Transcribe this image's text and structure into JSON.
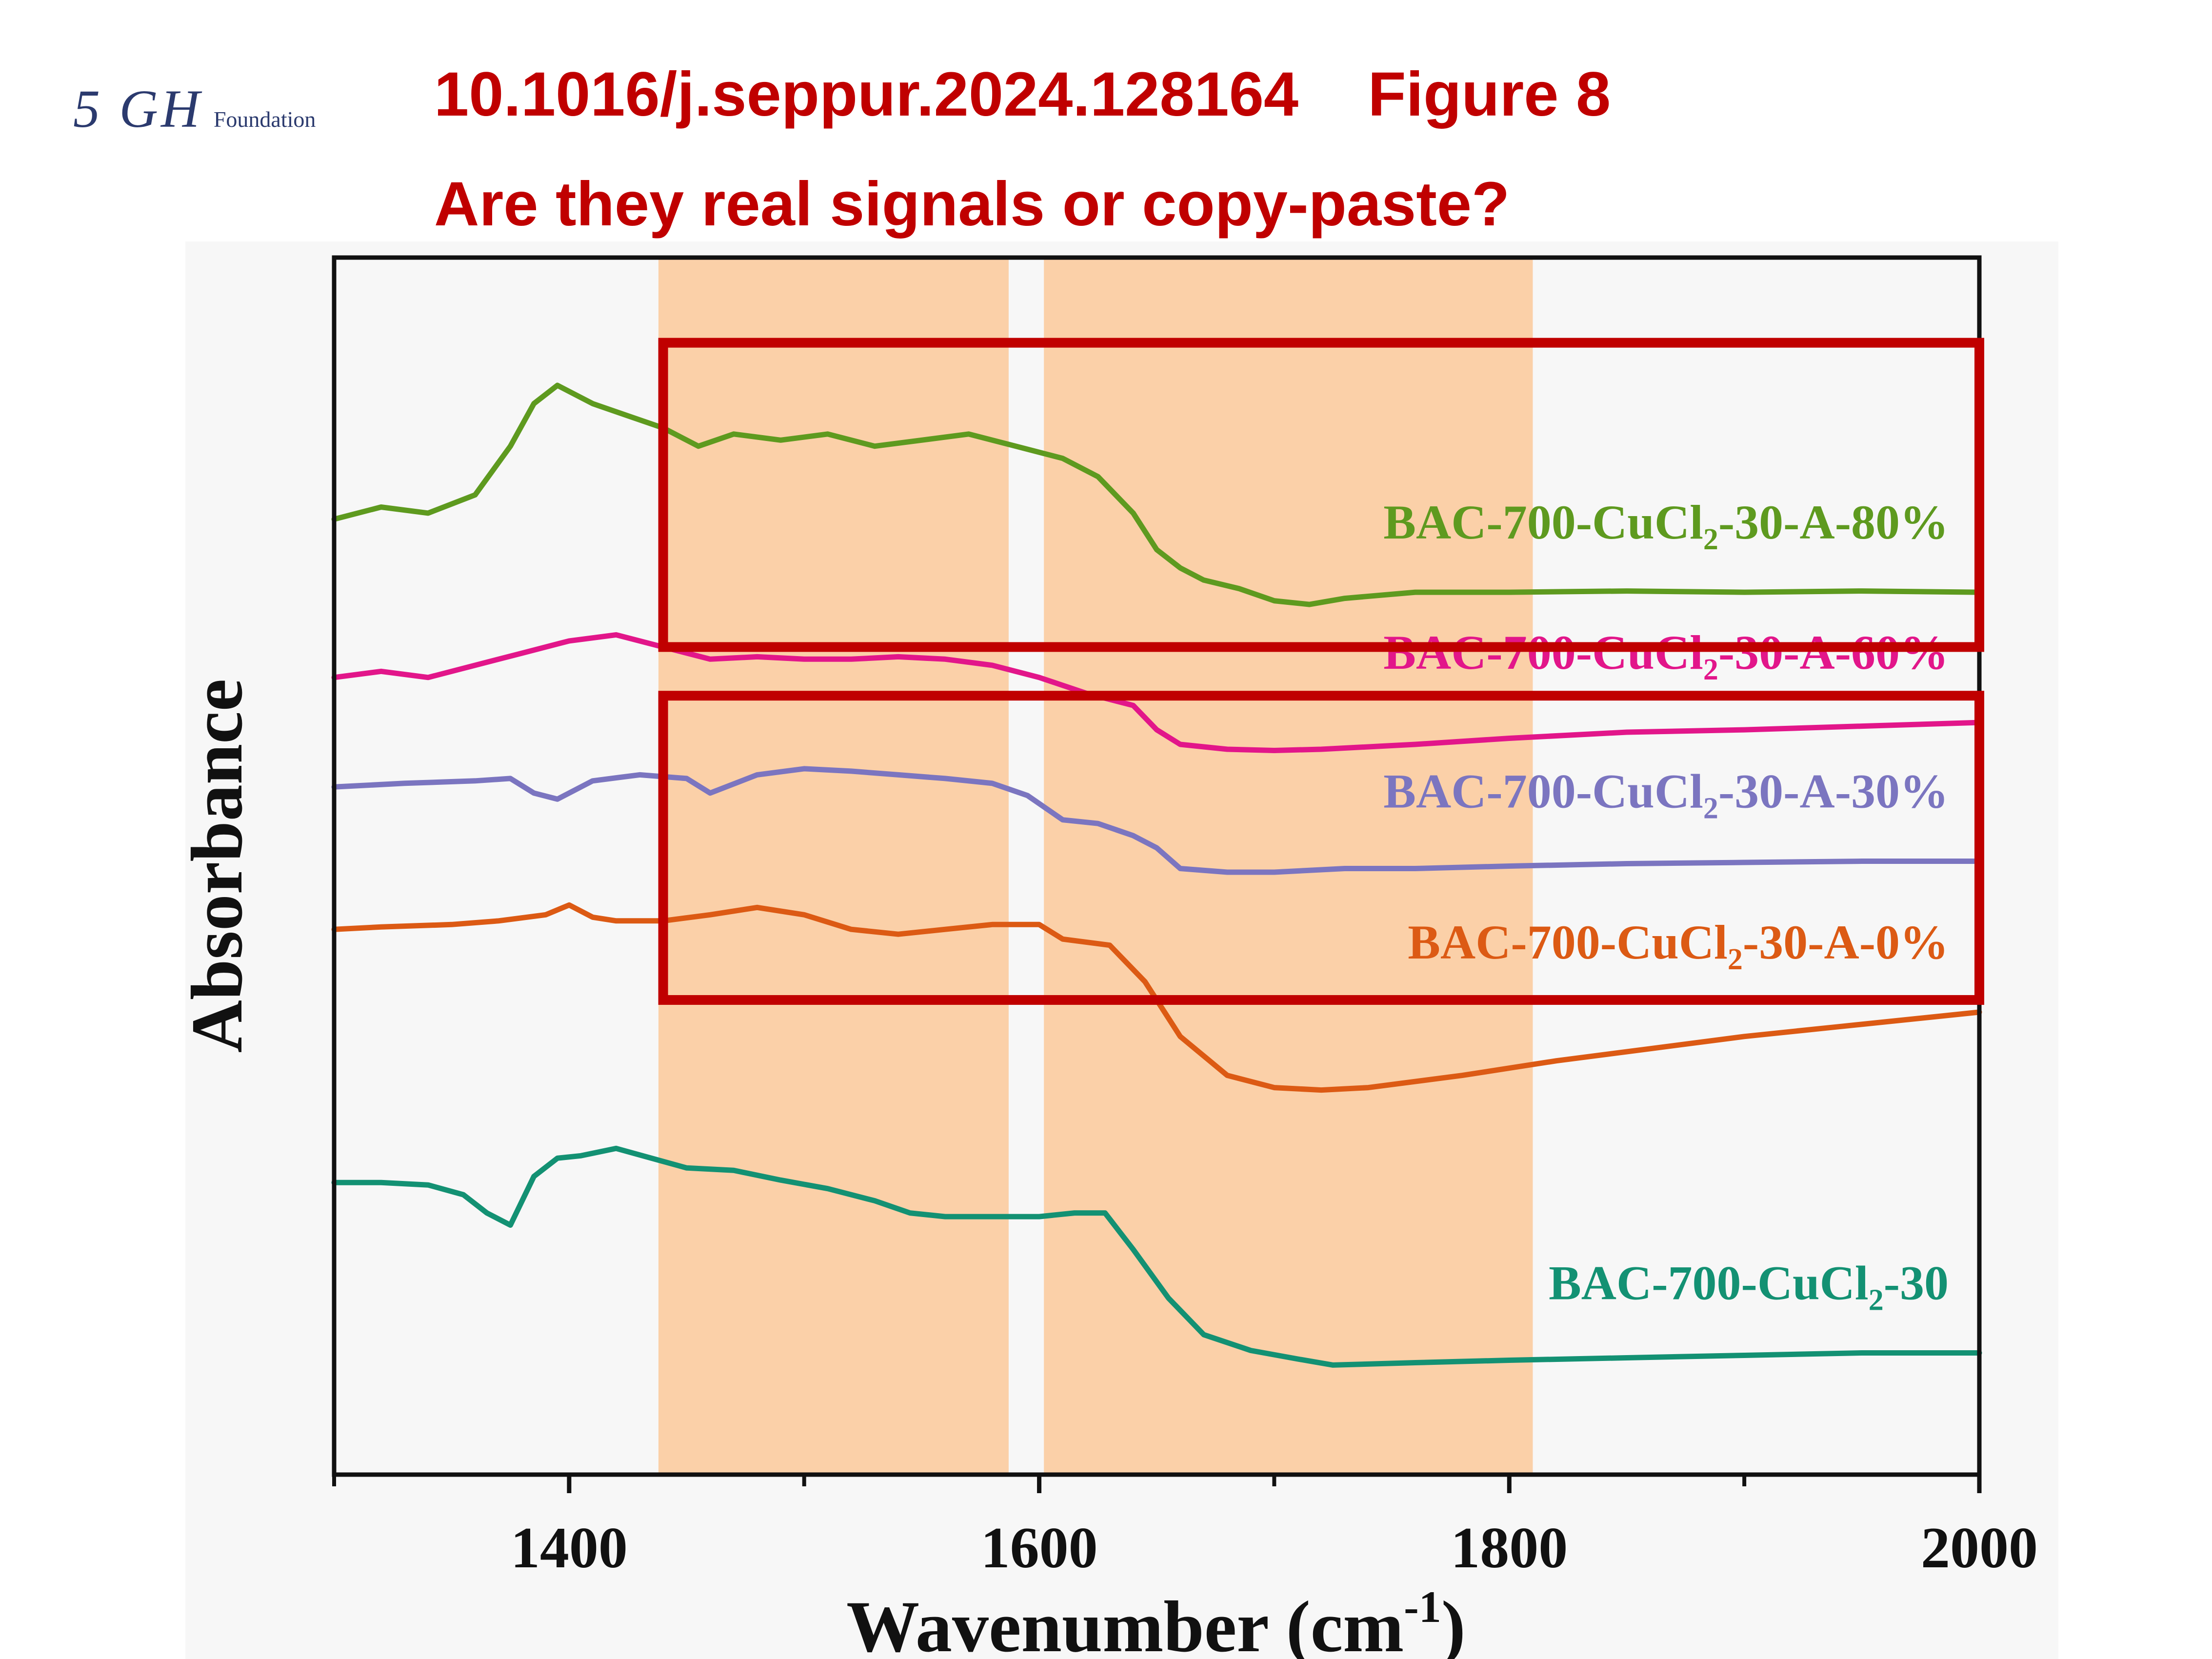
{
  "header": {
    "logo_mark": "5 GH",
    "logo_word": "Foundation",
    "doi": "10.1016/j.seppur.2024.128164",
    "figure": "Figure 8",
    "question": "Are they real signals or copy-paste?"
  },
  "colors": {
    "accent_red": "#c00000",
    "band_fill": "#fbd0a8",
    "plot_bg": "#f7f7f7"
  },
  "chart_data": {
    "type": "line",
    "xlabel": "Wavenumber (cm",
    "xlabel_sup": "-1",
    "xlabel_end": ")",
    "ylabel": "Absorbance",
    "xlim": [
      1300,
      2000
    ],
    "ylim": [
      0,
      10
    ],
    "xticks": [
      1400,
      1600,
      1800,
      2000
    ],
    "minor_xticks": [
      1300,
      1500,
      1700,
      1900
    ],
    "grid": false,
    "legend": "inline labels at right of each trace",
    "bands": [
      [
        1438,
        1587
      ],
      [
        1602,
        1810
      ]
    ],
    "highlight_boxes": [
      {
        "x": [
          1440,
          2000
        ],
        "y": [
          6.8,
          9.3
        ]
      },
      {
        "x": [
          1440,
          2000
        ],
        "y": [
          3.9,
          6.4
        ]
      }
    ],
    "series": [
      {
        "name": "BAC-700-CuCl",
        "name_sub": "2",
        "name_end": "-30-A-80%",
        "color": "#5e9a1f",
        "x": [
          1300,
          1320,
          1340,
          1360,
          1375,
          1385,
          1395,
          1410,
          1425,
          1440,
          1455,
          1470,
          1490,
          1510,
          1530,
          1550,
          1570,
          1590,
          1610,
          1625,
          1640,
          1650,
          1660,
          1670,
          1685,
          1700,
          1715,
          1730,
          1760,
          1800,
          1850,
          1900,
          1950,
          2000
        ],
        "y": [
          7.85,
          7.95,
          7.9,
          8.05,
          8.45,
          8.8,
          8.95,
          8.8,
          8.7,
          8.6,
          8.45,
          8.55,
          8.5,
          8.55,
          8.45,
          8.5,
          8.55,
          8.45,
          8.35,
          8.2,
          7.9,
          7.6,
          7.45,
          7.35,
          7.28,
          7.18,
          7.15,
          7.2,
          7.25,
          7.25,
          7.26,
          7.25,
          7.26,
          7.25
        ]
      },
      {
        "name": "BAC-700-CuCl",
        "name_sub": "2",
        "name_end": "-30-A-60%",
        "color": "#e2168a",
        "x": [
          1300,
          1320,
          1340,
          1360,
          1380,
          1400,
          1420,
          1440,
          1460,
          1480,
          1500,
          1520,
          1540,
          1560,
          1580,
          1600,
          1620,
          1640,
          1650,
          1660,
          1680,
          1700,
          1720,
          1760,
          1800,
          1850,
          1900,
          1950,
          2000
        ],
        "y": [
          6.55,
          6.6,
          6.55,
          6.65,
          6.75,
          6.85,
          6.9,
          6.8,
          6.7,
          6.72,
          6.7,
          6.7,
          6.72,
          6.7,
          6.65,
          6.55,
          6.42,
          6.32,
          6.12,
          6.0,
          5.96,
          5.95,
          5.96,
          6.0,
          6.05,
          6.1,
          6.12,
          6.15,
          6.18
        ]
      },
      {
        "name": "BAC-700-CuCl",
        "name_sub": "2",
        "name_end": "-30-A-30%",
        "color": "#7b75c0",
        "x": [
          1300,
          1330,
          1360,
          1375,
          1385,
          1395,
          1410,
          1430,
          1450,
          1460,
          1480,
          1500,
          1520,
          1540,
          1560,
          1580,
          1595,
          1610,
          1625,
          1640,
          1650,
          1660,
          1680,
          1700,
          1730,
          1760,
          1800,
          1850,
          1900,
          1950,
          2000
        ],
        "y": [
          5.65,
          5.68,
          5.7,
          5.72,
          5.6,
          5.55,
          5.7,
          5.75,
          5.72,
          5.6,
          5.75,
          5.8,
          5.78,
          5.75,
          5.72,
          5.68,
          5.58,
          5.38,
          5.35,
          5.25,
          5.15,
          4.98,
          4.95,
          4.95,
          4.98,
          4.98,
          5.0,
          5.02,
          5.03,
          5.04,
          5.04
        ]
      },
      {
        "name": "BAC-700-CuCl",
        "name_sub": "2",
        "name_end": "-30-A-0%",
        "color": "#dc5a14",
        "x": [
          1300,
          1320,
          1350,
          1370,
          1390,
          1400,
          1410,
          1420,
          1440,
          1460,
          1480,
          1500,
          1520,
          1540,
          1560,
          1580,
          1600,
          1610,
          1630,
          1645,
          1660,
          1680,
          1700,
          1720,
          1740,
          1780,
          1820,
          1860,
          1900,
          1940,
          2000
        ],
        "y": [
          4.48,
          4.5,
          4.52,
          4.55,
          4.6,
          4.68,
          4.58,
          4.55,
          4.55,
          4.6,
          4.66,
          4.6,
          4.48,
          4.44,
          4.48,
          4.52,
          4.52,
          4.4,
          4.35,
          4.05,
          3.6,
          3.28,
          3.18,
          3.16,
          3.18,
          3.28,
          3.4,
          3.5,
          3.6,
          3.68,
          3.8
        ]
      },
      {
        "name": "BAC-700-CuCl",
        "name_sub": "2",
        "name_end": "-30",
        "color": "#139173",
        "x": [
          1300,
          1320,
          1340,
          1355,
          1365,
          1375,
          1385,
          1395,
          1405,
          1420,
          1435,
          1450,
          1470,
          1490,
          1510,
          1530,
          1545,
          1560,
          1580,
          1600,
          1615,
          1628,
          1640,
          1655,
          1670,
          1690,
          1710,
          1725,
          1760,
          1800,
          1850,
          1900,
          1950,
          2000
        ],
        "y": [
          2.4,
          2.4,
          2.38,
          2.3,
          2.15,
          2.05,
          2.45,
          2.6,
          2.62,
          2.68,
          2.6,
          2.52,
          2.5,
          2.42,
          2.35,
          2.25,
          2.15,
          2.12,
          2.12,
          2.12,
          2.15,
          2.15,
          1.85,
          1.45,
          1.15,
          1.02,
          0.95,
          0.9,
          0.92,
          0.94,
          0.96,
          0.98,
          1.0,
          1.0
        ]
      }
    ]
  }
}
